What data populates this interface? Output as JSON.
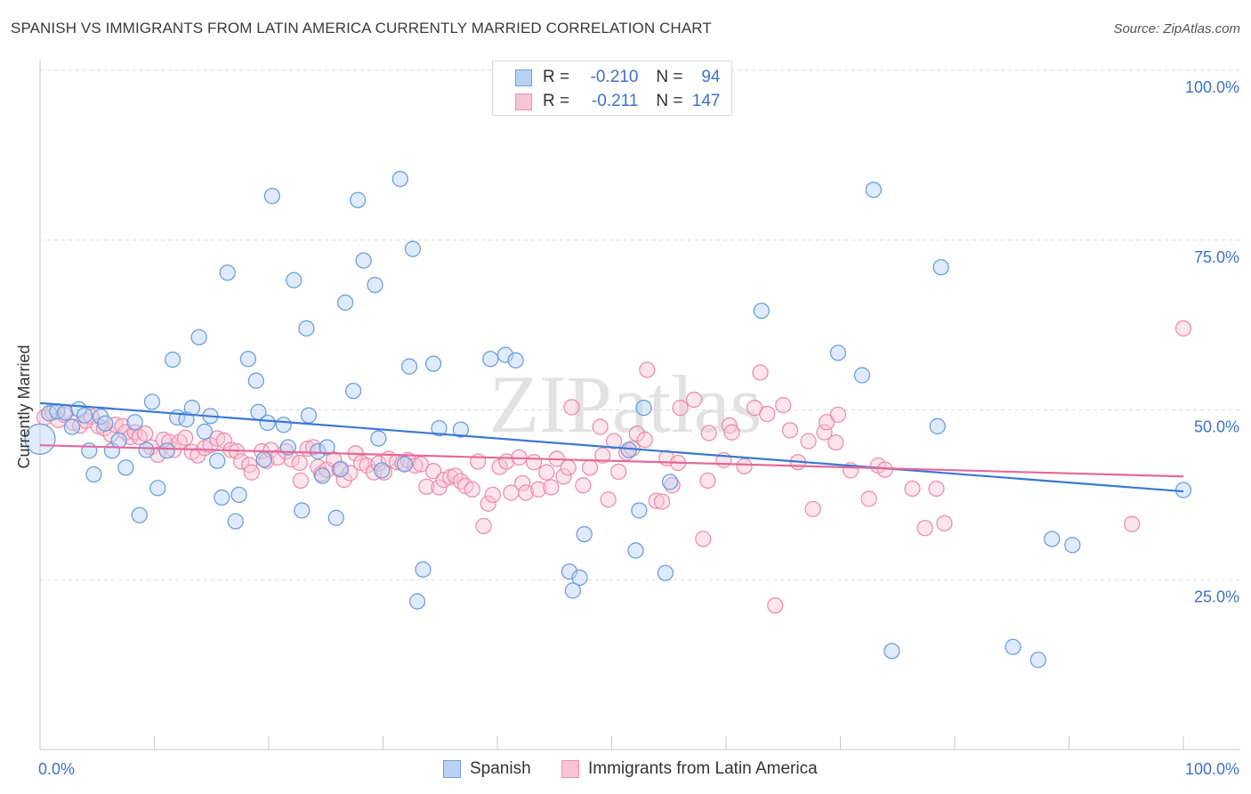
{
  "title": "SPANISH VS IMMIGRANTS FROM LATIN AMERICA CURRENTLY MARRIED CORRELATION CHART",
  "source": "Source: ZipAtlas.com",
  "watermark": "ZIPatlas",
  "legend": {
    "rows": [
      {
        "r_label": "R =",
        "r_value": "-0.210",
        "n_label": "N =",
        "n_value": "94",
        "color": "#6f9ee0",
        "fill": "#b9d2f4"
      },
      {
        "r_label": "R =",
        "r_value": "-0.211",
        "n_label": "N =",
        "n_value": "147",
        "color": "#ec8fad",
        "fill": "#f8c5d5"
      }
    ]
  },
  "bottom_legend": {
    "spanish": "Spanish",
    "immigrants": "Immigrants from Latin America"
  },
  "chart_data": {
    "type": "scatter",
    "title": "SPANISH VS IMMIGRANTS FROM LATIN AMERICA CURRENTLY MARRIED CORRELATION CHART",
    "xlabel": "",
    "ylabel": "Currently Married",
    "xlim": [
      0,
      100
    ],
    "ylim": [
      0,
      100
    ],
    "x_tick_labels": [
      "0.0%",
      "100.0%"
    ],
    "y_ticks": [
      25,
      50,
      75,
      100
    ],
    "y_tick_labels": [
      "25.0%",
      "50.0%",
      "75.0%",
      "100.0%"
    ],
    "grid": true,
    "colors": {
      "spanish": "#3a78d4",
      "immigrants": "#e4699a"
    },
    "series": [
      {
        "name": "Spanish",
        "r": -0.21,
        "n": 94,
        "trend": {
          "x": [
            0,
            100
          ],
          "y": [
            51,
            38
          ]
        },
        "points": [
          [
            0.0,
            45.7
          ],
          [
            0.8,
            49.5
          ],
          [
            1.5,
            49.8
          ],
          [
            2.2,
            49.6
          ],
          [
            2.8,
            47.5
          ],
          [
            3.4,
            50.1
          ],
          [
            3.9,
            49.2
          ],
          [
            4.3,
            44
          ],
          [
            4.7,
            40.5
          ],
          [
            5.3,
            49
          ],
          [
            5.7,
            48
          ],
          [
            6.3,
            44
          ],
          [
            6.9,
            45.5
          ],
          [
            7.5,
            41.5
          ],
          [
            8.3,
            48.2
          ],
          [
            8.7,
            34.5
          ],
          [
            9.3,
            44.1
          ],
          [
            9.8,
            51.2
          ],
          [
            10.3,
            38.5
          ],
          [
            11.1,
            44
          ],
          [
            11.6,
            57.4
          ],
          [
            12,
            48.9
          ],
          [
            12.8,
            48.6
          ],
          [
            13.3,
            50.3
          ],
          [
            13.9,
            60.7
          ],
          [
            14.4,
            46.8
          ],
          [
            14.9,
            49.1
          ],
          [
            15.5,
            42.5
          ],
          [
            15.9,
            37.1
          ],
          [
            16.4,
            70.2
          ],
          [
            17.1,
            33.6
          ],
          [
            17.4,
            37.5
          ],
          [
            18.2,
            57.5
          ],
          [
            18.9,
            54.3
          ],
          [
            19.1,
            49.7
          ],
          [
            19.6,
            42.7
          ],
          [
            19.9,
            48.1
          ],
          [
            20.3,
            81.5
          ],
          [
            21.3,
            47.8
          ],
          [
            21.7,
            44.5
          ],
          [
            22.2,
            69.1
          ],
          [
            22.9,
            35.2
          ],
          [
            23.3,
            62
          ],
          [
            23.5,
            49.2
          ],
          [
            24.3,
            43.9
          ],
          [
            24.7,
            40.3
          ],
          [
            25.1,
            44.5
          ],
          [
            25.9,
            34.1
          ],
          [
            26.3,
            41.3
          ],
          [
            26.7,
            65.8
          ],
          [
            27.4,
            52.8
          ],
          [
            27.8,
            80.9
          ],
          [
            28.3,
            72
          ],
          [
            29.3,
            68.4
          ],
          [
            29.6,
            45.8
          ],
          [
            29.9,
            41.1
          ],
          [
            31.5,
            84
          ],
          [
            31.9,
            42
          ],
          [
            32.3,
            56.4
          ],
          [
            32.6,
            73.7
          ],
          [
            33,
            21.8
          ],
          [
            33.5,
            26.5
          ],
          [
            34.4,
            56.8
          ],
          [
            34.9,
            47.3
          ],
          [
            36.8,
            47.1
          ],
          [
            39.4,
            57.5
          ],
          [
            40.7,
            58.1
          ],
          [
            41.6,
            57.3
          ],
          [
            46.3,
            26.2
          ],
          [
            46.6,
            23.4
          ],
          [
            47.2,
            25.3
          ],
          [
            47.6,
            31.7
          ],
          [
            51.5,
            44.1
          ],
          [
            52.1,
            29.3
          ],
          [
            52.4,
            35.2
          ],
          [
            52.8,
            50.3
          ],
          [
            54.7,
            26
          ],
          [
            55.1,
            39.4
          ],
          [
            63.1,
            64.6
          ],
          [
            69.8,
            58.4
          ],
          [
            71.9,
            55.1
          ],
          [
            72.9,
            82.4
          ],
          [
            74.5,
            14.5
          ],
          [
            78.5,
            47.6
          ],
          [
            78.8,
            71
          ],
          [
            85.1,
            15.1
          ],
          [
            87.3,
            13.2
          ],
          [
            88.5,
            31
          ],
          [
            90.3,
            30.1
          ],
          [
            100.0,
            38.2
          ]
        ]
      },
      {
        "name": "Immigrants from Latin America",
        "r": -0.211,
        "n": 147,
        "trend": {
          "x": [
            0,
            100
          ],
          "y": [
            44.8,
            40.2
          ]
        },
        "points": [
          [
            0.4,
            48.9
          ],
          [
            1.1,
            49.6
          ],
          [
            1.6,
            48.5
          ],
          [
            2.1,
            49.3
          ],
          [
            2.9,
            48.1
          ],
          [
            3.5,
            47.7
          ],
          [
            4,
            48.4
          ],
          [
            4.5,
            49
          ],
          [
            5.1,
            47.6
          ],
          [
            5.6,
            47.3
          ],
          [
            6.2,
            46.4
          ],
          [
            6.6,
            47.8
          ],
          [
            7.2,
            47.6
          ],
          [
            7.5,
            46.7
          ],
          [
            7.9,
            46
          ],
          [
            8.3,
            46.7
          ],
          [
            8.7,
            46
          ],
          [
            9.2,
            46.5
          ],
          [
            9.7,
            44.5
          ],
          [
            10.3,
            43.4
          ],
          [
            10.8,
            45.6
          ],
          [
            11.3,
            45.3
          ],
          [
            11.7,
            44.1
          ],
          [
            12.2,
            45.3
          ],
          [
            12.7,
            45.9
          ],
          [
            13.3,
            43.8
          ],
          [
            13.8,
            43.3
          ],
          [
            14.4,
            44.4
          ],
          [
            14.9,
            44.8
          ],
          [
            15.5,
            45.8
          ],
          [
            16.1,
            45.5
          ],
          [
            16.7,
            44.1
          ],
          [
            17.2,
            43.9
          ],
          [
            17.6,
            42.4
          ],
          [
            18.3,
            41.9
          ],
          [
            18.5,
            40.8
          ],
          [
            19.4,
            43.9
          ],
          [
            19.8,
            42.5
          ],
          [
            20.2,
            44.1
          ],
          [
            20.8,
            43
          ],
          [
            21.5,
            43.9
          ],
          [
            22,
            42.7
          ],
          [
            22.7,
            42.2
          ],
          [
            22.8,
            39.6
          ],
          [
            23.4,
            44.3
          ],
          [
            23.9,
            44.5
          ],
          [
            24.3,
            41.6
          ],
          [
            24.6,
            40.6
          ],
          [
            25.1,
            41.2
          ],
          [
            25.7,
            42.7
          ],
          [
            26.2,
            41.2
          ],
          [
            26.6,
            39.7
          ],
          [
            27.1,
            40.7
          ],
          [
            27.6,
            43.6
          ],
          [
            28.1,
            42.2
          ],
          [
            28.6,
            41.8
          ],
          [
            29.2,
            40.8
          ],
          [
            29.6,
            42.1
          ],
          [
            30.1,
            40.8
          ],
          [
            30.5,
            42.8
          ],
          [
            31.2,
            42.3
          ],
          [
            31.7,
            42.1
          ],
          [
            32.2,
            42.6
          ],
          [
            32.8,
            41.8
          ],
          [
            33.3,
            42
          ],
          [
            33.8,
            38.7
          ],
          [
            34.4,
            41
          ],
          [
            34.9,
            38.6
          ],
          [
            35.3,
            39.7
          ],
          [
            35.9,
            40.1
          ],
          [
            36.3,
            40.3
          ],
          [
            36.8,
            39.5
          ],
          [
            37.2,
            38.8
          ],
          [
            37.8,
            38.3
          ],
          [
            38.3,
            42.4
          ],
          [
            38.8,
            32.9
          ],
          [
            39.2,
            36.2
          ],
          [
            39.6,
            37.5
          ],
          [
            40.2,
            41.6
          ],
          [
            40.8,
            42.4
          ],
          [
            41.2,
            37.8
          ],
          [
            41.9,
            43
          ],
          [
            42.2,
            39.2
          ],
          [
            42.5,
            37.8
          ],
          [
            43.2,
            42.3
          ],
          [
            43.6,
            38.3
          ],
          [
            44.3,
            40.8
          ],
          [
            44.7,
            38.6
          ],
          [
            45.2,
            42.8
          ],
          [
            45.8,
            40.2
          ],
          [
            46.2,
            41.5
          ],
          [
            46.5,
            50.4
          ],
          [
            47.5,
            38.9
          ],
          [
            48.1,
            41.5
          ],
          [
            49,
            47.5
          ],
          [
            49.2,
            43.3
          ],
          [
            49.7,
            36.8
          ],
          [
            50.2,
            45.4
          ],
          [
            50.6,
            40.9
          ],
          [
            51.3,
            43.7
          ],
          [
            51.8,
            44.3
          ],
          [
            52.2,
            46.5
          ],
          [
            52.9,
            45.6
          ],
          [
            53.1,
            55.9
          ],
          [
            53.9,
            36.6
          ],
          [
            54.4,
            36.5
          ],
          [
            54.8,
            42.9
          ],
          [
            55.3,
            38.9
          ],
          [
            55.8,
            42.2
          ],
          [
            56,
            50.3
          ],
          [
            57.2,
            51.5
          ],
          [
            58,
            31
          ],
          [
            58.4,
            39.6
          ],
          [
            58.5,
            46.6
          ],
          [
            59.8,
            42.6
          ],
          [
            60.3,
            47.7
          ],
          [
            60.5,
            46.7
          ],
          [
            61.6,
            41.7
          ],
          [
            62.5,
            50.3
          ],
          [
            63,
            55.5
          ],
          [
            63.6,
            49.4
          ],
          [
            64.3,
            21.2
          ],
          [
            65,
            50.7
          ],
          [
            65.6,
            47
          ],
          [
            66.3,
            42.3
          ],
          [
            67.2,
            45.4
          ],
          [
            67.6,
            35.4
          ],
          [
            68.6,
            46.7
          ],
          [
            68.8,
            48.2
          ],
          [
            69.6,
            45.2
          ],
          [
            69.8,
            49.3
          ],
          [
            70.9,
            41.1
          ],
          [
            72.5,
            36.9
          ],
          [
            73.3,
            41.8
          ],
          [
            73.9,
            41.2
          ],
          [
            76.3,
            38.4
          ],
          [
            77.4,
            32.6
          ],
          [
            78.4,
            38.4
          ],
          [
            79.1,
            33.3
          ],
          [
            95.5,
            33.2
          ],
          [
            100.0,
            62
          ]
        ]
      }
    ]
  }
}
